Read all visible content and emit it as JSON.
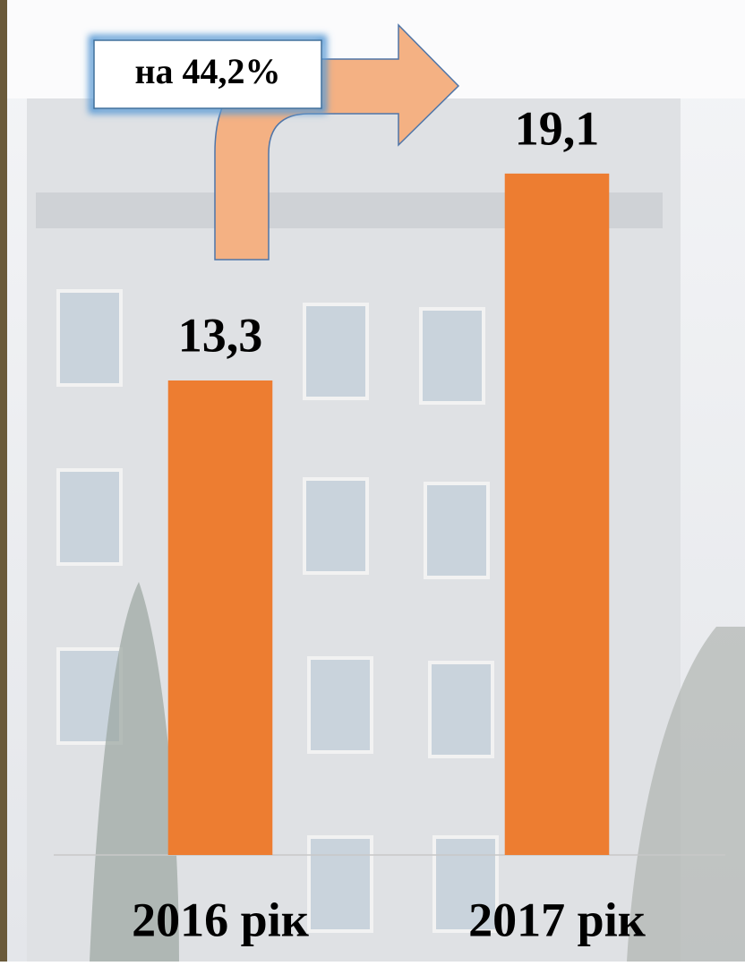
{
  "chart_data": {
    "type": "bar",
    "annotation": "на 44,2%",
    "categories": [
      "2016 рік",
      "2017 рік"
    ],
    "values": [
      13.3,
      19.1
    ],
    "value_labels": [
      "13,3",
      "19,1"
    ],
    "color": "#ed7d31",
    "ylim": [
      0,
      20
    ],
    "grid": false
  }
}
